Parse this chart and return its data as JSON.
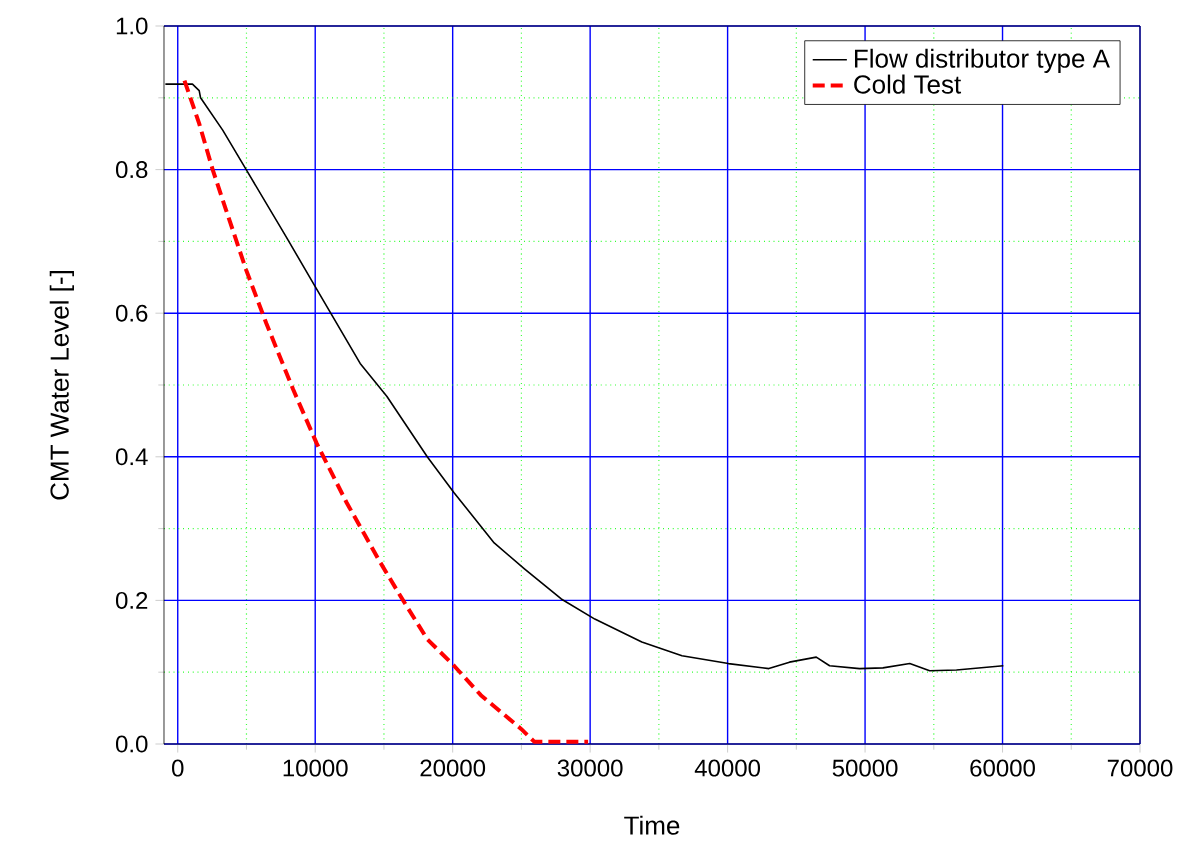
{
  "chart_data": {
    "type": "line",
    "xlabel": "Time",
    "ylabel": "CMT Water Level [-]",
    "xlim": [
      -1000,
      70000
    ],
    "ylim": [
      0,
      1
    ],
    "xticks": [
      0,
      {
        "value": 5000,
        "label": null
      },
      10000,
      {
        "value": 15000,
        "label": null
      },
      20000,
      {
        "value": 25000,
        "label": null
      },
      30000,
      {
        "value": 35000,
        "label": null
      },
      40000,
      {
        "value": 45000,
        "label": null
      },
      50000,
      {
        "value": 55000,
        "label": null
      },
      60000,
      {
        "value": 65000,
        "label": null
      },
      70000
    ],
    "yticks": [
      {
        "value": 0,
        "label": "0.0"
      },
      {
        "value": 0.1,
        "label": null
      },
      {
        "value": 0.2,
        "label": "0.2"
      },
      {
        "value": 0.3,
        "label": null
      },
      {
        "value": 0.4,
        "label": "0.4"
      },
      {
        "value": 0.5,
        "label": null
      },
      {
        "value": 0.6,
        "label": "0.6"
      },
      {
        "value": 0.7,
        "label": null
      },
      {
        "value": 0.8,
        "label": "0.8"
      },
      {
        "value": 0.9,
        "label": null
      },
      {
        "value": 1,
        "label": "1.0"
      }
    ],
    "grid": true,
    "legend": "top right",
    "marker": "none",
    "series": [
      {
        "name": "Flow distributor type A",
        "color": "#000000",
        "line_style": "solid",
        "x": [
          -900,
          1070,
          1560,
          1660,
          3270,
          4980,
          7900,
          10000,
          13270,
          15220,
          18150,
          20100,
          23020,
          25220,
          27900,
          30340,
          33760,
          36680,
          40060,
          43000,
          44500,
          46450,
          47420,
          49600,
          51300,
          53250,
          54700,
          56650,
          60060
        ],
        "values": [
          0.919,
          0.919,
          0.91,
          0.9,
          0.855,
          0.8,
          0.706,
          0.637,
          0.53,
          0.484,
          0.4,
          0.35,
          0.28,
          0.244,
          0.202,
          0.174,
          0.142,
          0.123,
          0.112,
          0.105,
          0.114,
          0.121,
          0.109,
          0.105,
          0.106,
          0.112,
          0.102,
          0.103,
          0.109
        ]
      },
      {
        "name": "Cold Test",
        "color": "#ff0000",
        "line_style": "dashed",
        "x": [
          490,
          1560,
          2540,
          3510,
          4980,
          6440,
          8390,
          10100,
          12290,
          14730,
          16200,
          18150,
          20100,
          22050,
          24980,
          25950,
          29850
        ],
        "values": [
          0.924,
          0.864,
          0.8,
          0.744,
          0.66,
          0.586,
          0.494,
          0.419,
          0.336,
          0.253,
          0.206,
          0.146,
          0.109,
          0.068,
          0.021,
          0.003,
          0.003
        ]
      }
    ]
  }
}
